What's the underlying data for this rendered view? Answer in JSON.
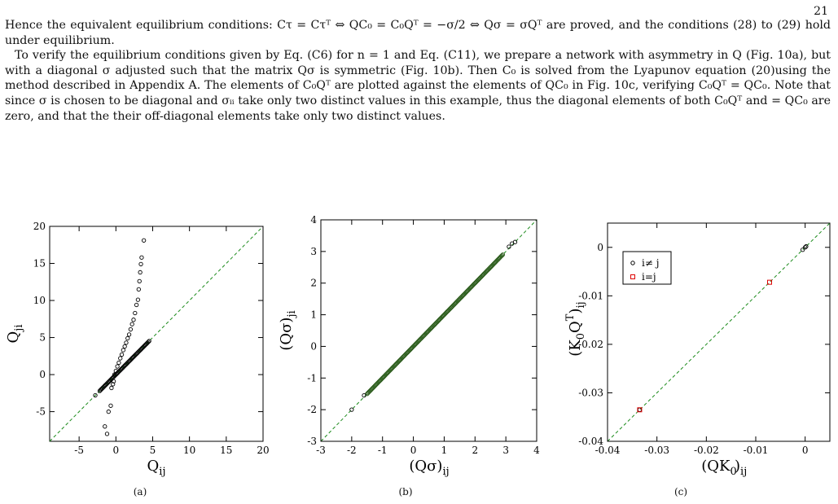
{
  "page_number": "21",
  "paragraphs": [
    "Hence the equivalent equilibrium conditions: Cτ = Cτᵀ ⇔ QC₀ = C₀Qᵀ = −σ/2 ⇔ Qσ = σQᵀ are proved, and the conditions (28) to (29) hold under equilibrium.",
    "To verify the equilibrium conditions given by Eq. (C6) for n = 1 and Eq. (C11), we prepare a network with asymmetry in Q (Fig. 10a), but with a diagonal σ adjusted such that the matrix Qσ is symmetric (Fig. 10b). Then C₀ is solved from the Lyapunov equation (20)using the method described in Appendix A. The elements of C₀Qᵀ are plotted against the elements of QC₀ in Fig. 10c, verifying C₀Qᵀ = QC₀. Note that since σ is chosen to be diagonal and σᵢᵢ take only two distinct values in this example, thus the diagonal elements of both C₀Qᵀ and = QC₀ are zero, and that the their off-diagonal elements take only two distinct values."
  ],
  "chart_data": [
    {
      "type": "scatter",
      "panel": "(a)",
      "xlabel": "Q_ij",
      "ylabel": "Q_ji",
      "xlim": [
        -9,
        20
      ],
      "ylim": [
        -9,
        20
      ],
      "xticks": [
        "-5",
        "0",
        "5",
        "10",
        "15",
        "20"
      ],
      "yticks": [
        "-5",
        "0",
        "5",
        "10",
        "15",
        "20"
      ],
      "diagonal": true,
      "series": [
        {
          "points": [
            [
              -2.8,
              -2.8
            ],
            [
              -1.2,
              -8
            ],
            [
              -1.5,
              -7
            ],
            [
              -1,
              -5
            ],
            [
              -0.7,
              -4.2
            ],
            [
              -0.6,
              -1.8
            ],
            [
              -0.4,
              -1.3
            ],
            [
              -0.3,
              -0.9
            ],
            [
              -0.2,
              0
            ],
            [
              0,
              0.5
            ],
            [
              0.2,
              1.1
            ],
            [
              0.4,
              1.6
            ],
            [
              0.6,
              2.2
            ],
            [
              0.8,
              2.7
            ],
            [
              1,
              3.3
            ],
            [
              1.2,
              3.8
            ],
            [
              1.4,
              4.3
            ],
            [
              1.6,
              4.9
            ],
            [
              1.8,
              5.4
            ],
            [
              2,
              6.1
            ],
            [
              2.2,
              6.8
            ],
            [
              2.4,
              7.4
            ],
            [
              2.6,
              8.3
            ],
            [
              2.8,
              9.4
            ],
            [
              3,
              10.1
            ],
            [
              3.1,
              11.5
            ],
            [
              3.2,
              12.6
            ],
            [
              3.3,
              13.8
            ],
            [
              3.4,
              14.9
            ],
            [
              3.5,
              15.8
            ],
            [
              3.8,
              18.1
            ]
          ]
        },
        {
          "band": [
            -2.2,
            4.6
          ]
        }
      ]
    },
    {
      "type": "scatter",
      "panel": "(b)",
      "xlabel": "(Qσ)_ij",
      "ylabel": "(Qσ)_ji",
      "xlim": [
        -3,
        4
      ],
      "ylim": [
        -3,
        4
      ],
      "xticks": [
        "-3",
        "-2",
        "-1",
        "0",
        "1",
        "2",
        "3",
        "4"
      ],
      "yticks": [
        "-3",
        "-2",
        "-1",
        "0",
        "1",
        "2",
        "3",
        "4"
      ],
      "diagonal": true,
      "band": [
        -1.5,
        2.9
      ],
      "outliers": [
        [
          -2,
          -2
        ],
        [
          -1.6,
          -1.55
        ],
        [
          3.1,
          3.15
        ],
        [
          3.2,
          3.25
        ],
        [
          3.3,
          3.3
        ]
      ]
    },
    {
      "type": "scatter",
      "panel": "(c)",
      "xlabel": "(QK₀)_ij",
      "ylabel": "(K₀Qᵀ)_ij",
      "xlim": [
        -0.04,
        0.005
      ],
      "ylim": [
        -0.04,
        0.005
      ],
      "xticks": [
        "-0.04",
        "-0.03",
        "-0.02",
        "-0.01",
        "0"
      ],
      "yticks": [
        "-0.04",
        "-0.03",
        "-0.02",
        "-0.01",
        "0"
      ],
      "diagonal": true,
      "legend": [
        "i≠ j",
        "i=j"
      ],
      "series": [
        {
          "name": "i≠ j",
          "points": [
            [
              0,
              0
            ],
            [
              -0.0005,
              -0.0005
            ],
            [
              0.0002,
              0.0002
            ],
            [
              -0.0335,
              -0.0335
            ]
          ]
        },
        {
          "name": "i=j",
          "points": [
            [
              -0.0335,
              -0.0335
            ],
            [
              -0.0072,
              -0.0072
            ]
          ]
        }
      ]
    }
  ],
  "captions": [
    "(a)",
    "(b)",
    "(c)"
  ]
}
